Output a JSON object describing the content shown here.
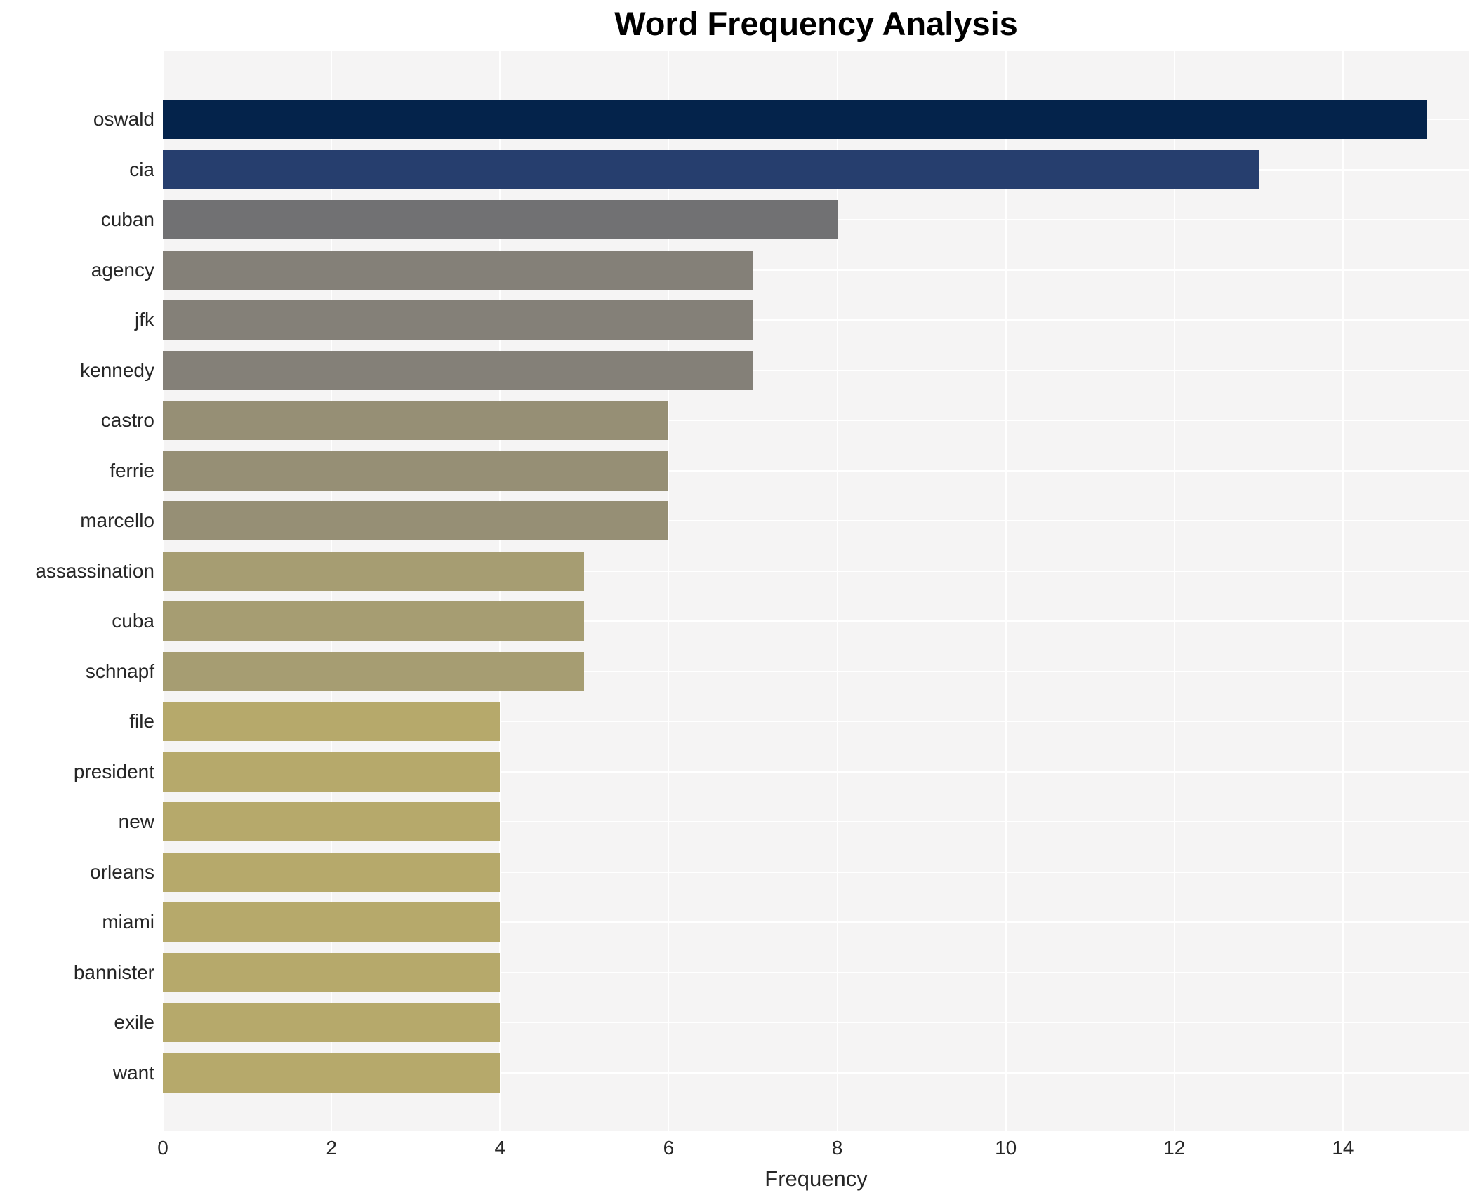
{
  "chart_data": {
    "type": "bar",
    "orientation": "horizontal",
    "title": "Word Frequency Analysis",
    "xlabel": "Frequency",
    "ylabel": "",
    "xlim": [
      0,
      15.5
    ],
    "x_ticks": [
      0,
      2,
      4,
      6,
      8,
      10,
      12,
      14
    ],
    "grid": true,
    "legend": false,
    "categories": [
      "oswald",
      "cia",
      "cuban",
      "agency",
      "jfk",
      "kennedy",
      "castro",
      "ferrie",
      "marcello",
      "assassination",
      "cuba",
      "schnapf",
      "file",
      "president",
      "new",
      "orleans",
      "miami",
      "bannister",
      "exile",
      "want"
    ],
    "values": [
      15,
      13,
      8,
      7,
      7,
      7,
      6,
      6,
      6,
      5,
      5,
      5,
      4,
      4,
      4,
      4,
      4,
      4,
      4,
      4
    ],
    "bar_colors": [
      "#04234b",
      "#263e6e",
      "#717173",
      "#848078",
      "#848078",
      "#848078",
      "#968f75",
      "#968f75",
      "#968f75",
      "#a69d72",
      "#a69d72",
      "#a69d72",
      "#b6a96b",
      "#b6a96b",
      "#b6a96b",
      "#b6a96b",
      "#b6a96b",
      "#b6a96b",
      "#b6a96b",
      "#b6a96b"
    ]
  },
  "colors": {
    "figure_background": "#ffffff",
    "plot_background": "#f5f4f4",
    "gridline": "#ffffff",
    "tick_text": "#262626",
    "title_text": "#000000"
  }
}
